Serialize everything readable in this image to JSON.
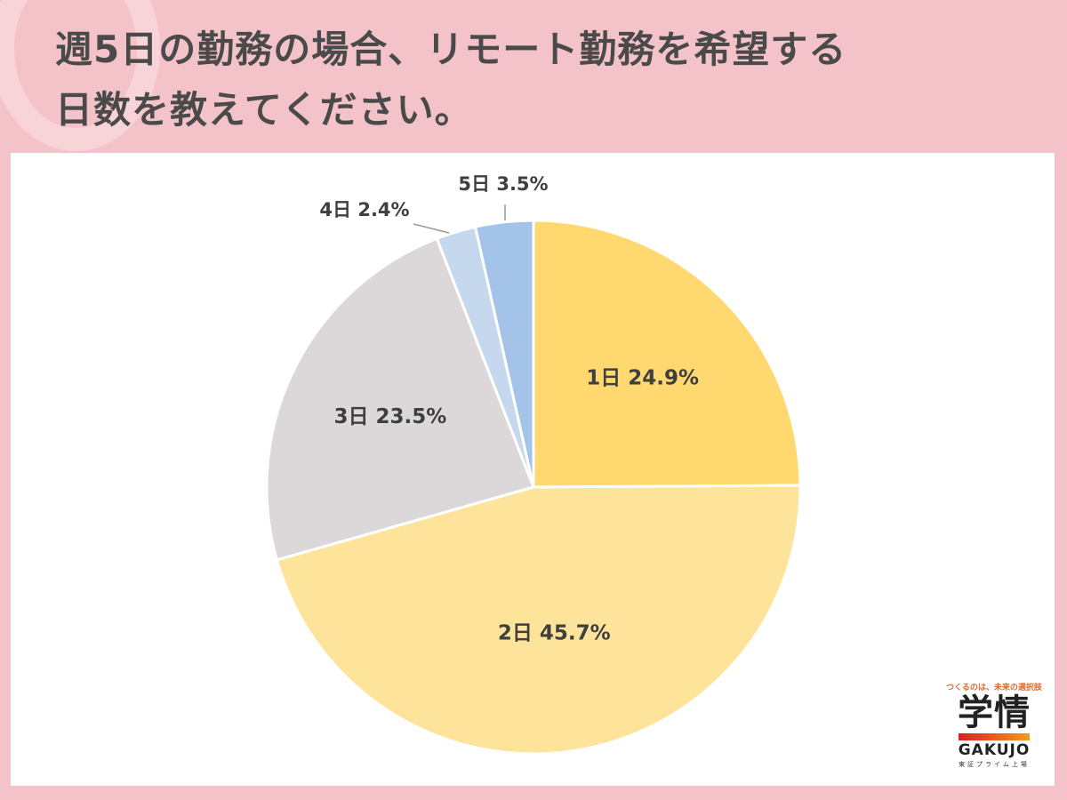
{
  "title_lines": [
    "週5日の勤務の場合、リモート勤務を希望する",
    "日数を教えてください。"
  ],
  "chart_data": {
    "type": "pie",
    "title": "週5日の勤務の場合、リモート勤務を希望する日数を教えてください。",
    "start": "12 o'clock",
    "direction": "clockwise",
    "slices": [
      {
        "label": "1日",
        "value": 24.9,
        "display": "1日 24.9%",
        "color": "#ffd96f"
      },
      {
        "label": "2日",
        "value": 45.7,
        "display": "2日 45.7%",
        "color": "#fee49a"
      },
      {
        "label": "3日",
        "value": 23.5,
        "display": "3日 23.5%",
        "color": "#dcd8da"
      },
      {
        "label": "4日",
        "value": 2.4,
        "display": "4日 2.4%",
        "color": "#c5d8ee"
      },
      {
        "label": "5日",
        "value": 3.5,
        "display": "5日 3.5%",
        "color": "#a3c3e8"
      }
    ]
  },
  "logo": {
    "tagline": "つくるのは、未来の選択肢",
    "name_jp": "学情",
    "name_en": "GAKUJO",
    "listing": "東証プライム上場"
  }
}
